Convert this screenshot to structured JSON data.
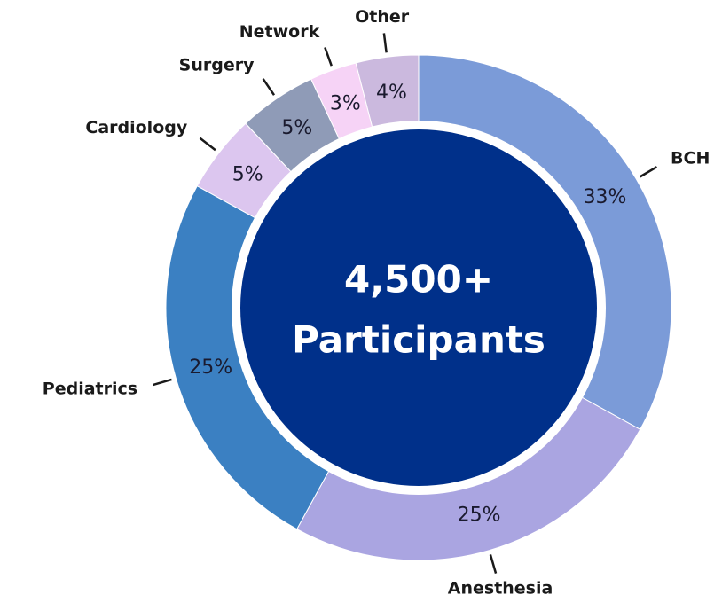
{
  "chart_data": {
    "type": "donut",
    "categories": [
      "BCH",
      "Anesthesia",
      "Pediatrics",
      "Cardiology",
      "Surgery",
      "Network",
      "Other"
    ],
    "values": [
      33,
      25,
      25,
      5,
      5,
      3,
      4
    ],
    "value_labels": [
      "33%",
      "25%",
      "25%",
      "5%",
      "5%",
      "3%",
      "4%"
    ],
    "colors": [
      "#7b9bd8",
      "#aaa5e1",
      "#3b80c2",
      "#dcc6ef",
      "#8f9bb7",
      "#f6d3f6",
      "#cbb9de"
    ],
    "center_label": [
      "4,500+",
      "Participants"
    ],
    "center_color": "#00308a"
  }
}
